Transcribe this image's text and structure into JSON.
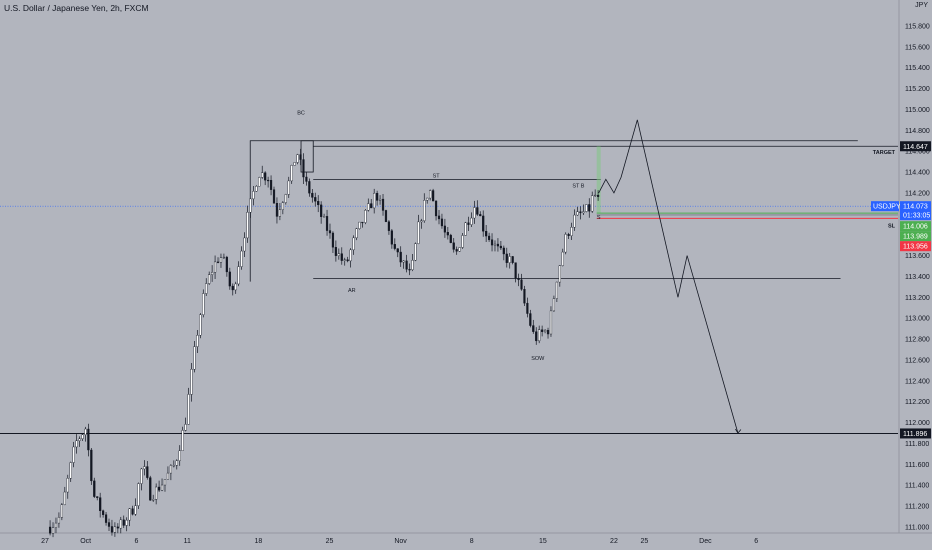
{
  "header": {
    "title": "U.S. Dollar / Japanese Yen, 2h, FXCM",
    "currency": "JPY"
  },
  "colors": {
    "background": "#b2b5be",
    "text": "#131722",
    "candle_up": "#ffffff",
    "candle_down": "#131722",
    "price_line": "#2962ff",
    "price_tag": "#2962ff",
    "target_tag": "#131722",
    "level_tag": "#131722",
    "tp_tag": "#4caf50",
    "sl_tag": "#f23645",
    "tp_zone": "#81c784",
    "sl_zone": "#e57373"
  },
  "chart_data": {
    "type": "candlestick",
    "symbol": "USDJPY",
    "timeframe": "2h",
    "y_axis": {
      "min": 110.9,
      "max": 116.2,
      "ticks": [
        "111.000",
        "111.200",
        "111.400",
        "111.600",
        "111.800",
        "112.000",
        "112.200",
        "112.400",
        "112.600",
        "112.800",
        "113.000",
        "113.200",
        "113.400",
        "113.600",
        "113.800",
        "114.000",
        "114.200",
        "114.400",
        "114.600",
        "114.800",
        "115.000",
        "115.200",
        "115.400",
        "115.600",
        "115.800"
      ]
    },
    "x_axis": {
      "ticks": [
        {
          "label": "27",
          "day": 0
        },
        {
          "label": "Oct",
          "day": 4
        },
        {
          "label": "6",
          "day": 9
        },
        {
          "label": "11",
          "day": 14
        },
        {
          "label": "18",
          "day": 21
        },
        {
          "label": "25",
          "day": 28
        },
        {
          "label": "Nov",
          "day": 35
        },
        {
          "label": "8",
          "day": 42
        },
        {
          "label": "15",
          "day": 49
        },
        {
          "label": "22",
          "day": 56
        },
        {
          "label": "25",
          "day": 59
        },
        {
          "label": "Dec",
          "day": 65
        },
        {
          "label": "6",
          "day": 70
        }
      ]
    },
    "price_path": [
      {
        "day": 0.5,
        "price": 111.0
      },
      {
        "day": 1.5,
        "price": 111.1
      },
      {
        "day": 3.0,
        "price": 111.8
      },
      {
        "day": 4.0,
        "price": 111.95
      },
      {
        "day": 4.8,
        "price": 111.3
      },
      {
        "day": 5.8,
        "price": 111.1
      },
      {
        "day": 6.8,
        "price": 110.95
      },
      {
        "day": 7.8,
        "price": 111.05
      },
      {
        "day": 8.8,
        "price": 111.2
      },
      {
        "day": 9.6,
        "price": 111.6
      },
      {
        "day": 10.4,
        "price": 111.3
      },
      {
        "day": 11.4,
        "price": 111.4
      },
      {
        "day": 12.8,
        "price": 111.6
      },
      {
        "day": 13.8,
        "price": 112.0
      },
      {
        "day": 14.6,
        "price": 112.6
      },
      {
        "day": 15.2,
        "price": 113.0
      },
      {
        "day": 15.8,
        "price": 113.3
      },
      {
        "day": 16.6,
        "price": 113.5
      },
      {
        "day": 17.2,
        "price": 113.6
      },
      {
        "day": 17.8,
        "price": 113.5
      },
      {
        "day": 18.4,
        "price": 113.2
      },
      {
        "day": 19.0,
        "price": 113.5
      },
      {
        "day": 20.0,
        "price": 114.0
      },
      {
        "day": 21.0,
        "price": 114.4
      },
      {
        "day": 22.0,
        "price": 114.35
      },
      {
        "day": 22.8,
        "price": 114.0
      },
      {
        "day": 24.0,
        "price": 114.3
      },
      {
        "day": 24.8,
        "price": 114.6
      },
      {
        "day": 25.6,
        "price": 114.3
      },
      {
        "day": 26.6,
        "price": 114.1
      },
      {
        "day": 27.8,
        "price": 113.85
      },
      {
        "day": 28.6,
        "price": 113.65
      },
      {
        "day": 29.6,
        "price": 113.5
      },
      {
        "day": 30.6,
        "price": 113.8
      },
      {
        "day": 31.6,
        "price": 114.0
      },
      {
        "day": 32.6,
        "price": 114.2
      },
      {
        "day": 33.6,
        "price": 113.9
      },
      {
        "day": 34.6,
        "price": 113.6
      },
      {
        "day": 35.4,
        "price": 113.5
      },
      {
        "day": 36.0,
        "price": 113.4
      },
      {
        "day": 36.8,
        "price": 113.9
      },
      {
        "day": 37.8,
        "price": 114.25
      },
      {
        "day": 38.6,
        "price": 114.0
      },
      {
        "day": 39.6,
        "price": 113.75
      },
      {
        "day": 40.4,
        "price": 113.6
      },
      {
        "day": 41.4,
        "price": 113.9
      },
      {
        "day": 42.4,
        "price": 114.1
      },
      {
        "day": 43.2,
        "price": 113.85
      },
      {
        "day": 44.2,
        "price": 113.7
      },
      {
        "day": 45.0,
        "price": 113.6
      },
      {
        "day": 45.8,
        "price": 113.55
      },
      {
        "day": 46.4,
        "price": 113.4
      },
      {
        "day": 47.0,
        "price": 113.2
      },
      {
        "day": 47.6,
        "price": 113.0
      },
      {
        "day": 48.2,
        "price": 112.8
      },
      {
        "day": 48.8,
        "price": 112.85
      },
      {
        "day": 49.6,
        "price": 112.9
      },
      {
        "day": 50.4,
        "price": 113.4
      },
      {
        "day": 51.2,
        "price": 113.75
      },
      {
        "day": 52.0,
        "price": 113.95
      },
      {
        "day": 52.8,
        "price": 114.0
      },
      {
        "day": 53.6,
        "price": 114.05
      },
      {
        "day": 54.0,
        "price": 114.2
      },
      {
        "day": 54.6,
        "price": 114.1
      }
    ],
    "levels": [
      {
        "name": "target",
        "price": 114.647,
        "label": "114.647",
        "annotation": "TARGET"
      },
      {
        "name": "current",
        "price": 114.073,
        "label": "114.073",
        "countdown": "01:33:05",
        "symbol": "USDJPY"
      },
      {
        "name": "take-profit-entry",
        "price": 114.006,
        "label": "114.006"
      },
      {
        "name": "entry",
        "price": 113.989,
        "label": "113.989"
      },
      {
        "name": "stop-loss",
        "price": 113.956,
        "label": "113.956",
        "annotation": "SL"
      },
      {
        "name": "support",
        "price": 111.896,
        "label": "111.896"
      }
    ],
    "annotations": [
      {
        "text": "BC",
        "day": 25.2,
        "price": 114.95
      },
      {
        "text": "ST",
        "day": 38.5,
        "price": 114.35
      },
      {
        "text": "ST B",
        "day": 52.5,
        "price": 114.25
      },
      {
        "text": "AR",
        "day": 30.2,
        "price": 113.25
      },
      {
        "text": "SOW",
        "day": 48.5,
        "price": 112.6
      },
      {
        "text": "S",
        "day": 54.5,
        "price": 113.95
      }
    ],
    "range_boxes": [
      {
        "day_start": 20.2,
        "day_end": 80,
        "price_low": 113.35,
        "price_high": 114.7
      },
      {
        "day_start": 25.2,
        "day_end": 26.4,
        "price_low": 114.4,
        "price_high": 114.7
      }
    ],
    "structure_lines": [
      {
        "day_start": 26.4,
        "day_end": 54.7,
        "price": 114.33
      },
      {
        "day_start": 26.4,
        "day_end": 78.3,
        "price": 113.38
      }
    ],
    "projection": [
      {
        "day": 54.5,
        "price": 114.2
      },
      {
        "day": 55.2,
        "price": 114.33
      },
      {
        "day": 56.0,
        "price": 114.2
      },
      {
        "day": 56.7,
        "price": 114.35
      },
      {
        "day": 58.3,
        "price": 114.9
      },
      {
        "day": 62.3,
        "price": 113.2
      },
      {
        "day": 63.2,
        "price": 113.6
      },
      {
        "day": 68.2,
        "price": 111.9
      }
    ]
  }
}
